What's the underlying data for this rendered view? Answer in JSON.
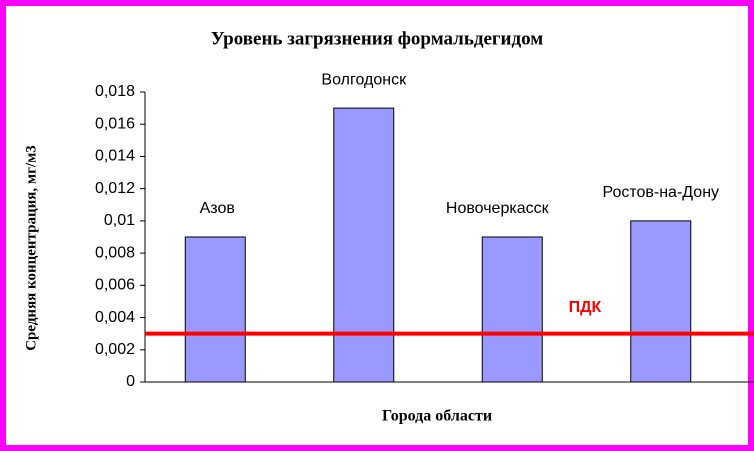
{
  "chart_data": {
    "type": "bar",
    "title": "Уровень загрязнения формальдегидом",
    "ylabel": "Средняя концентрация, мг/м3",
    "xlabel": "Города области",
    "categories": [
      "Азов",
      "Волгодонск",
      "Новочеркасск",
      "Ростов-на-Дону"
    ],
    "values": [
      0.009,
      0.017,
      0.009,
      0.01
    ],
    "color": "#9999ff",
    "ylim": [
      0,
      0.018
    ],
    "yticks": [
      0,
      {
        "value": 0.002,
        "label": "0,002"
      },
      {
        "value": 0.004,
        "label": "0,004"
      },
      {
        "value": 0.006,
        "label": "0,006"
      },
      {
        "value": 0.008,
        "label": "0,008"
      },
      {
        "value": 0.01,
        "label": "0,01"
      },
      {
        "value": 0.012,
        "label": "0,012"
      },
      {
        "value": 0.014,
        "label": "0,014"
      },
      {
        "value": 0.016,
        "label": "0,016"
      },
      {
        "value": 0.018,
        "label": "0,018"
      }
    ],
    "grid": false,
    "reference_line": {
      "label": "ПДК",
      "value": 0.003,
      "color": "#ff0000"
    }
  }
}
